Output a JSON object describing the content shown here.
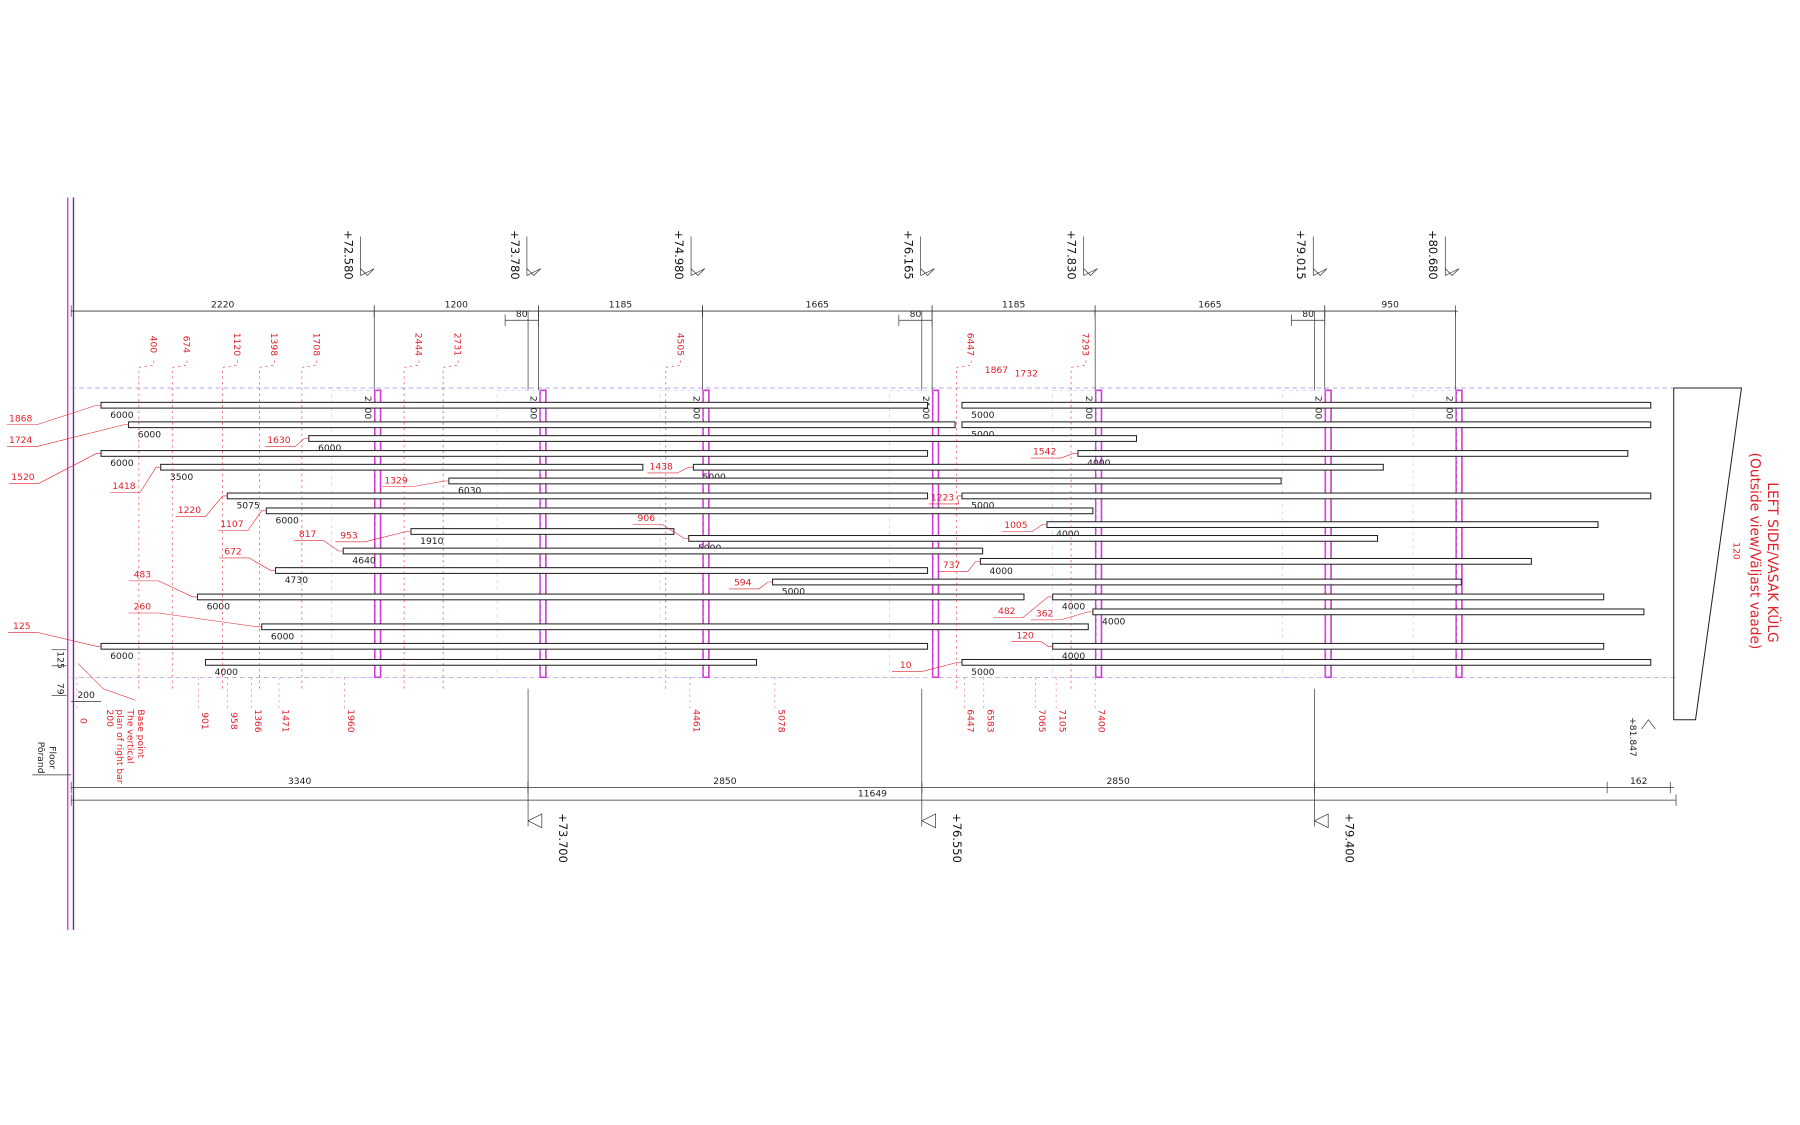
{
  "title": "LEFT SIDE/VASAK KÜLG",
  "subtitle": "(Outside view/Väljast vaade)",
  "title_note": "120",
  "top_levels": [
    "+72.580",
    "+73.780",
    "+74.980",
    "+76.165",
    "+77.830",
    "+79.015",
    "+80.680"
  ],
  "top_dims": [
    2220,
    1200,
    80,
    1185,
    1665,
    80,
    1185,
    1665,
    80,
    950
  ],
  "post_labels": [
    2100,
    2100,
    2100,
    2100,
    2100,
    2100,
    2100
  ],
  "bottom_levels": [
    "+73.700",
    "+76.550",
    "+79.400"
  ],
  "bottom_dims": [
    3340,
    2850,
    2850,
    162
  ],
  "total_length": 11649,
  "right_level": "+81.847",
  "left_dims": [
    125,
    79,
    200
  ],
  "floor": [
    "Floor",
    "Põrand"
  ],
  "base_note": [
    "Base point",
    "The vertical",
    "plan of right bar",
    "200"
  ],
  "boards": [
    {
      "length": 6000,
      "offset": 1868
    },
    {
      "length": 5000
    },
    {
      "length": 6000,
      "offset": 1724
    },
    {
      "length": 5000
    },
    {
      "length": 6000,
      "offset": 1630
    },
    {
      "length": 6000,
      "offset": 1520
    },
    {
      "length": 4000,
      "offset": 1542
    },
    {
      "length": 3500,
      "offset": 1418
    },
    {
      "length": 5000,
      "offset": 1438
    },
    {
      "length": 6030,
      "offset": 1329
    },
    {
      "length": 5075,
      "offset": 1220
    },
    {
      "length": 5000,
      "offset": 1223
    },
    {
      "length": 6000,
      "offset": 1107
    },
    {
      "length": 4000,
      "offset": 1005
    },
    {
      "length": 1910,
      "offset": 953
    },
    {
      "length": 5000,
      "offset": 906
    },
    {
      "length": 4640,
      "offset": 817
    },
    {
      "length": 4000,
      "offset": 737
    },
    {
      "length": 4730,
      "offset": 672
    },
    {
      "length": 5000,
      "offset": 594
    },
    {
      "length": 6000,
      "offset": 483
    },
    {
      "length": 4000,
      "offset": 482
    },
    {
      "length": 4000,
      "offset": 362
    },
    {
      "length": 6000,
      "offset": 260
    },
    {
      "length": 6000,
      "offset": 125
    },
    {
      "length": 4000,
      "offset": 120
    },
    {
      "length": 4000
    },
    {
      "length": 5000,
      "offset": 10
    }
  ],
  "top_marks": [
    400,
    674,
    1120,
    1398,
    1708,
    2444,
    2731,
    4505,
    6447,
    7293
  ],
  "top_marks_flat": [
    1867,
    1732
  ],
  "bottom_marks": [
    0,
    901,
    958,
    1366,
    1471,
    1960,
    4461,
    5078,
    6447,
    6583,
    7065,
    7105,
    7400
  ]
}
